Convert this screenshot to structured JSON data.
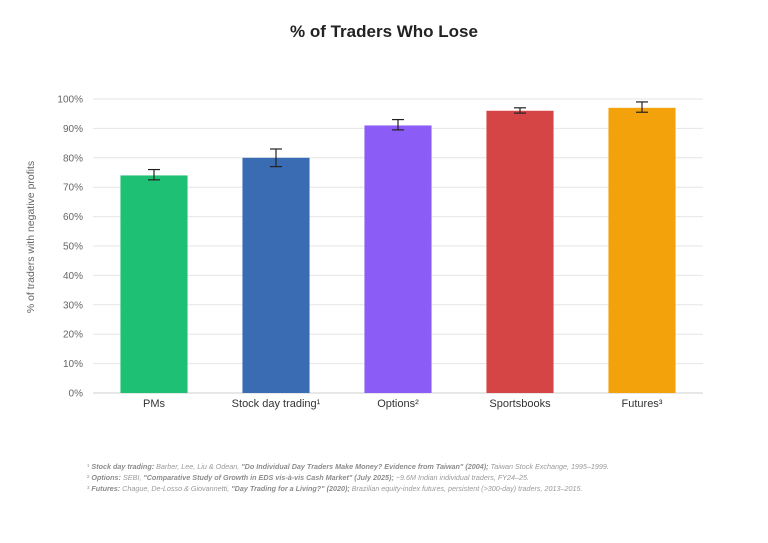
{
  "chart_data": {
    "type": "bar",
    "title": "% of Traders Who Lose",
    "xlabel": "",
    "ylabel": "% of traders with negative profits",
    "ylim": [
      0,
      100
    ],
    "yticks": [
      "0%",
      "10%",
      "20%",
      "30%",
      "40%",
      "50%",
      "60%",
      "70%",
      "80%",
      "90%",
      "100%"
    ],
    "categories": [
      "PMs",
      "Stock day trading¹",
      "Options²",
      "Sportsbooks",
      "Futures³"
    ],
    "values": [
      74,
      80,
      91,
      96,
      97
    ],
    "error_low": [
      72.5,
      77,
      89.5,
      95.2,
      95.5
    ],
    "error_high": [
      76,
      83,
      93,
      97,
      99
    ],
    "colors": [
      "#1ec173",
      "#3a6cb4",
      "#8b5cf6",
      "#d64545",
      "#f4a20c"
    ],
    "grid": true,
    "legend": "none"
  },
  "footnotes": [
    {
      "marker": "¹",
      "lead": "Stock day trading:",
      "authors": " Barber, Lee, Liu & Odean, ",
      "quote": "\"Do Individual Day Traders Make Money? Evidence from Taiwan\" (2004);",
      "tail": " Taiwan Stock Exchange, 1995–1999."
    },
    {
      "marker": "²",
      "lead": "Options:",
      "authors": " SEBI, ",
      "quote": "\"Comparative Study of Growth in EDS vis-à-vis Cash Market\" (July 2025);",
      "tail": " ~9.6M Indian individual traders, FY24–25."
    },
    {
      "marker": "³",
      "lead": "Futures:",
      "authors": " Chague, De-Losso & Giovannetti, ",
      "quote": "\"Day Trading for a Living?\" (2020);",
      "tail": " Brazilian equity-index futures, persistent (>300-day) traders, 2013–2015."
    }
  ]
}
